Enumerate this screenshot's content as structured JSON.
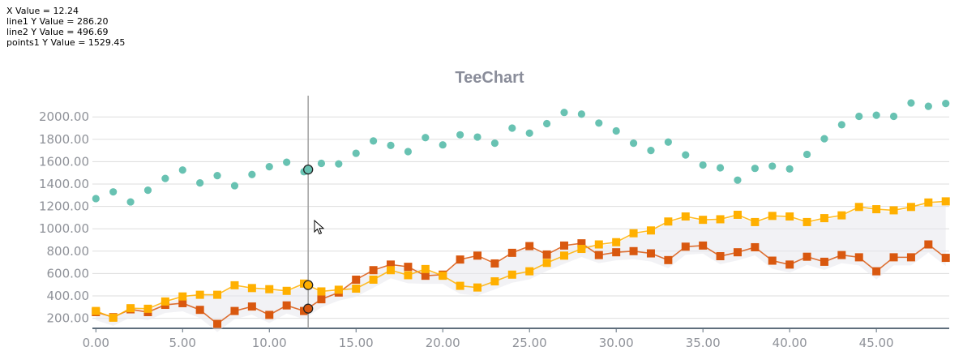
{
  "readout": {
    "x": "X Value = 12.24",
    "line1": "line1 Y Value = 286.20",
    "line2": "line2 Y Value = 496.69",
    "points1": "points1 Y Value = 1529.45"
  },
  "colors": {
    "line1": "#d9580f",
    "line2": "#ffb000",
    "points1": "#68c2b2",
    "grid": "#dddddd",
    "axis": "#5f6e7c",
    "cursor": "#a0a0a0"
  },
  "chart_data": {
    "type": "line",
    "title": "TeeChart",
    "xlabel": "",
    "ylabel": "",
    "xlim": [
      -0.2,
      49.2
    ],
    "ylim": [
      110,
      2190
    ],
    "x_ticks": [
      "0.00",
      "5.00",
      "10.00",
      "15.00",
      "20.00",
      "25.00",
      "30.00",
      "35.00",
      "40.00",
      "45.00"
    ],
    "y_ticks": [
      "200.00",
      "400.00",
      "600.00",
      "800.00",
      "1000.00",
      "1200.00",
      "1400.00",
      "1600.00",
      "1800.00",
      "2000.00"
    ],
    "grid": true,
    "legend": "none",
    "cursor_x": 12.24,
    "series": [
      {
        "name": "line1",
        "style": "line-square",
        "x": [
          0,
          1,
          2,
          3,
          4,
          5,
          6,
          7,
          8,
          9,
          10,
          11,
          12,
          13,
          14,
          15,
          16,
          17,
          18,
          19,
          20,
          21,
          22,
          23,
          24,
          25,
          26,
          27,
          28,
          29,
          30,
          31,
          32,
          33,
          34,
          35,
          36,
          37,
          38,
          39,
          40,
          41,
          42,
          43,
          44,
          45,
          46,
          47,
          48,
          49
        ],
        "values": [
          255,
          210,
          280,
          255,
          320,
          335,
          275,
          150,
          265,
          305,
          230,
          315,
          265,
          370,
          430,
          545,
          630,
          680,
          660,
          580,
          590,
          725,
          760,
          690,
          785,
          845,
          770,
          850,
          870,
          765,
          790,
          800,
          780,
          720,
          840,
          850,
          755,
          790,
          835,
          715,
          680,
          750,
          705,
          765,
          745,
          620,
          745,
          745,
          860,
          740
        ]
      },
      {
        "name": "line2",
        "style": "line-square",
        "x": [
          0,
          1,
          2,
          3,
          4,
          5,
          6,
          7,
          8,
          9,
          10,
          11,
          12,
          13,
          14,
          15,
          16,
          17,
          18,
          19,
          20,
          21,
          22,
          23,
          24,
          25,
          26,
          27,
          28,
          29,
          30,
          31,
          32,
          33,
          34,
          35,
          36,
          37,
          38,
          39,
          40,
          41,
          42,
          43,
          44,
          45,
          46,
          47,
          48,
          49
        ],
        "values": [
          265,
          205,
          290,
          285,
          350,
          395,
          410,
          410,
          495,
          470,
          460,
          445,
          510,
          440,
          455,
          465,
          545,
          630,
          585,
          640,
          580,
          490,
          475,
          530,
          590,
          620,
          695,
          760,
          820,
          860,
          880,
          960,
          985,
          1065,
          1110,
          1080,
          1085,
          1125,
          1060,
          1115,
          1110,
          1060,
          1095,
          1120,
          1195,
          1175,
          1165,
          1195,
          1235,
          1245
        ]
      },
      {
        "name": "points1",
        "style": "points",
        "x": [
          0,
          1,
          2,
          3,
          4,
          5,
          6,
          7,
          8,
          9,
          10,
          11,
          12,
          13,
          14,
          15,
          16,
          17,
          18,
          19,
          20,
          21,
          22,
          23,
          24,
          25,
          26,
          27,
          28,
          29,
          30,
          31,
          32,
          33,
          34,
          35,
          36,
          37,
          38,
          39,
          40,
          41,
          42,
          43,
          44,
          45,
          46,
          47,
          48,
          49
        ],
        "values": [
          1270,
          1330,
          1240,
          1345,
          1450,
          1525,
          1410,
          1475,
          1385,
          1485,
          1555,
          1595,
          1510,
          1585,
          1580,
          1675,
          1785,
          1745,
          1690,
          1815,
          1750,
          1840,
          1820,
          1765,
          1900,
          1855,
          1940,
          2040,
          2025,
          1945,
          1875,
          1765,
          1700,
          1775,
          1660,
          1570,
          1545,
          1435,
          1540,
          1560,
          1535,
          1665,
          1805,
          1930,
          2005,
          2015,
          2005,
          2125,
          2095,
          2120
        ]
      }
    ],
    "highlighted": [
      {
        "series": "points1",
        "x": 12.24,
        "y": 1529.45
      },
      {
        "series": "line2",
        "x": 12.24,
        "y": 496.69
      },
      {
        "series": "line1",
        "x": 12.24,
        "y": 286.2
      }
    ]
  }
}
